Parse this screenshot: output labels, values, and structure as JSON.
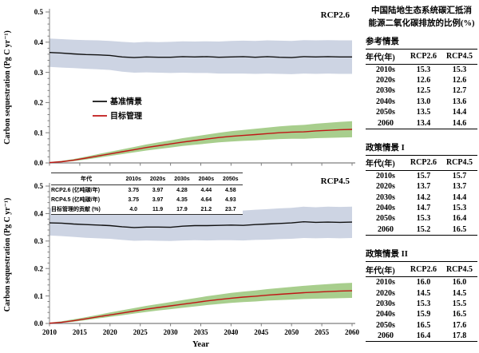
{
  "axes": {
    "ylabel": "Carbon sequestration (Pg C yr⁻¹)",
    "xlabel": "Year"
  },
  "chart_data": [
    {
      "type": "line",
      "title": "RCP2.6",
      "xlabel": "Year",
      "ylabel": "Carbon sequestration (Pg C yr⁻¹)",
      "xlim": [
        2010,
        2060
      ],
      "ylim": [
        0,
        0.5
      ],
      "xticks": [
        2010,
        2015,
        2020,
        2025,
        2030,
        2035,
        2040,
        2045,
        2050,
        2055,
        2060
      ],
      "yticks": [
        0.0,
        0.1,
        0.2,
        0.3,
        0.4,
        0.5
      ],
      "ytick_minor_step": 0.02,
      "legend_position": "center-left",
      "x": [
        2010,
        2012,
        2014,
        2016,
        2018,
        2020,
        2022,
        2024,
        2026,
        2028,
        2030,
        2032,
        2034,
        2036,
        2038,
        2040,
        2042,
        2044,
        2046,
        2048,
        2050,
        2052,
        2054,
        2056,
        2058,
        2060
      ],
      "series": [
        {
          "id": "baseline",
          "name": "基准情景",
          "color": "#111111",
          "band_color": "#cdd4e3",
          "values": [
            0.366,
            0.364,
            0.361,
            0.359,
            0.358,
            0.356,
            0.351,
            0.349,
            0.351,
            0.35,
            0.35,
            0.352,
            0.351,
            0.352,
            0.35,
            0.351,
            0.352,
            0.35,
            0.352,
            0.35,
            0.349,
            0.352,
            0.351,
            0.352,
            0.351,
            0.351
          ],
          "band_upper": [
            0.412,
            0.41,
            0.408,
            0.407,
            0.406,
            0.404,
            0.401,
            0.399,
            0.401,
            0.4,
            0.401,
            0.403,
            0.402,
            0.403,
            0.402,
            0.404,
            0.405,
            0.404,
            0.406,
            0.405,
            0.404,
            0.407,
            0.406,
            0.407,
            0.406,
            0.406
          ],
          "band_lower": [
            0.318,
            0.316,
            0.314,
            0.312,
            0.31,
            0.308,
            0.302,
            0.299,
            0.3,
            0.299,
            0.298,
            0.299,
            0.298,
            0.298,
            0.296,
            0.296,
            0.296,
            0.295,
            0.296,
            0.295,
            0.294,
            0.296,
            0.295,
            0.296,
            0.295,
            0.295
          ]
        },
        {
          "id": "target",
          "name": "目标管理",
          "color": "#c01616",
          "band_color": "#a8ce8d",
          "values": [
            0.001,
            0.004,
            0.009,
            0.016,
            0.023,
            0.03,
            0.037,
            0.044,
            0.051,
            0.057,
            0.063,
            0.069,
            0.074,
            0.079,
            0.084,
            0.088,
            0.091,
            0.094,
            0.097,
            0.1,
            0.102,
            0.103,
            0.106,
            0.108,
            0.11,
            0.111
          ],
          "band_upper": [
            0.003,
            0.007,
            0.013,
            0.021,
            0.029,
            0.037,
            0.045,
            0.053,
            0.061,
            0.068,
            0.075,
            0.082,
            0.088,
            0.094,
            0.1,
            0.105,
            0.109,
            0.113,
            0.117,
            0.121,
            0.124,
            0.126,
            0.13,
            0.133,
            0.136,
            0.138
          ],
          "band_lower": [
            0.0,
            0.002,
            0.006,
            0.011,
            0.017,
            0.023,
            0.029,
            0.035,
            0.041,
            0.046,
            0.051,
            0.056,
            0.06,
            0.064,
            0.068,
            0.071,
            0.073,
            0.075,
            0.077,
            0.079,
            0.08,
            0.08,
            0.082,
            0.083,
            0.084,
            0.085
          ]
        }
      ]
    },
    {
      "type": "line",
      "title": "RCP4.5",
      "xlabel": "Year",
      "ylabel": "Carbon sequestration (Pg C yr⁻¹)",
      "xlim": [
        2010,
        2060
      ],
      "ylim": [
        0,
        0.5
      ],
      "xticks": [
        2010,
        2015,
        2020,
        2025,
        2030,
        2035,
        2040,
        2045,
        2050,
        2055,
        2060
      ],
      "yticks": [
        0.0,
        0.1,
        0.2,
        0.3,
        0.4,
        0.5
      ],
      "ytick_minor_step": 0.02,
      "x": [
        2010,
        2012,
        2014,
        2016,
        2018,
        2020,
        2022,
        2024,
        2026,
        2028,
        2030,
        2032,
        2034,
        2036,
        2038,
        2040,
        2042,
        2044,
        2046,
        2048,
        2050,
        2052,
        2054,
        2056,
        2058,
        2060
      ],
      "series": [
        {
          "id": "baseline",
          "name": "基准情景",
          "color": "#111111",
          "band_color": "#cdd4e3",
          "values": [
            0.366,
            0.365,
            0.362,
            0.36,
            0.358,
            0.356,
            0.352,
            0.349,
            0.351,
            0.351,
            0.35,
            0.354,
            0.356,
            0.356,
            0.357,
            0.358,
            0.357,
            0.36,
            0.362,
            0.364,
            0.366,
            0.37,
            0.368,
            0.369,
            0.368,
            0.369
          ],
          "band_upper": [
            0.42,
            0.419,
            0.416,
            0.413,
            0.411,
            0.409,
            0.405,
            0.402,
            0.404,
            0.404,
            0.403,
            0.407,
            0.409,
            0.409,
            0.411,
            0.412,
            0.411,
            0.414,
            0.416,
            0.419,
            0.421,
            0.425,
            0.423,
            0.425,
            0.424,
            0.425
          ],
          "band_lower": [
            0.32,
            0.318,
            0.315,
            0.312,
            0.31,
            0.308,
            0.304,
            0.301,
            0.302,
            0.301,
            0.3,
            0.302,
            0.303,
            0.302,
            0.303,
            0.303,
            0.302,
            0.304,
            0.305,
            0.307,
            0.308,
            0.311,
            0.31,
            0.311,
            0.31,
            0.311
          ]
        },
        {
          "id": "target",
          "name": "目标管理",
          "color": "#c01616",
          "band_color": "#a8ce8d",
          "values": [
            0.001,
            0.004,
            0.01,
            0.017,
            0.024,
            0.031,
            0.038,
            0.045,
            0.052,
            0.058,
            0.064,
            0.07,
            0.076,
            0.082,
            0.087,
            0.092,
            0.096,
            0.099,
            0.103,
            0.106,
            0.109,
            0.112,
            0.114,
            0.116,
            0.118,
            0.119
          ],
          "band_upper": [
            0.003,
            0.008,
            0.015,
            0.023,
            0.031,
            0.04,
            0.048,
            0.056,
            0.064,
            0.071,
            0.078,
            0.085,
            0.092,
            0.099,
            0.105,
            0.111,
            0.116,
            0.12,
            0.125,
            0.129,
            0.133,
            0.137,
            0.14,
            0.143,
            0.146,
            0.148
          ],
          "band_lower": [
            0.0,
            0.002,
            0.006,
            0.012,
            0.018,
            0.024,
            0.03,
            0.036,
            0.042,
            0.047,
            0.052,
            0.057,
            0.062,
            0.067,
            0.071,
            0.075,
            0.078,
            0.08,
            0.083,
            0.085,
            0.087,
            0.089,
            0.09,
            0.091,
            0.092,
            0.093
          ]
        }
      ]
    }
  ],
  "inset_table": {
    "columns": [
      "年代",
      "2010s",
      "2020s",
      "2030s",
      "2040s",
      "2050s"
    ],
    "rows": [
      [
        "RCP2.6 (亿吨碳/年)",
        "3.75",
        "3.97",
        "4.28",
        "4.44",
        "4.58"
      ],
      [
        "RCP4.5 (亿吨碳/年)",
        "3.75",
        "3.97",
        "4.35",
        "4.64",
        "4.93"
      ],
      [
        "目标管理的贡献 (%)",
        "4.0",
        "11.9",
        "17.9",
        "21.2",
        "23.7"
      ]
    ]
  },
  "right_panel": {
    "title_line1": "中国陆地生态系统碳汇抵消",
    "title_line2": "能源二氧化碳排放的比例(%)",
    "sections": [
      {
        "heading": "参考情景",
        "columns": [
          "年代(年)",
          "RCP2.6",
          "RCP4.5"
        ],
        "rows": [
          [
            "2010s",
            "15.3",
            "15.3"
          ],
          [
            "2020s",
            "12.6",
            "12.6"
          ],
          [
            "2030s",
            "12.5",
            "12.7"
          ],
          [
            "2040s",
            "13.0",
            "13.6"
          ],
          [
            "2050s",
            "13.5",
            "14.4"
          ],
          [
            "2060",
            "13.4",
            "14.6"
          ]
        ]
      },
      {
        "heading": "政策情景 I",
        "columns": [
          "年代(年)",
          "RCP2.6",
          "RCP4.5"
        ],
        "rows": [
          [
            "2010s",
            "15.7",
            "15.7"
          ],
          [
            "2020s",
            "13.7",
            "13.7"
          ],
          [
            "2030s",
            "14.2",
            "14.4"
          ],
          [
            "2040s",
            "14.7",
            "15.3"
          ],
          [
            "2050s",
            "15.3",
            "16.4"
          ],
          [
            "2060",
            "15.2",
            "16.5"
          ]
        ]
      },
      {
        "heading": "政策情景 II",
        "columns": [
          "年代(年)",
          "RCP2.6",
          "RCP4.5"
        ],
        "rows": [
          [
            "2010s",
            "16.0",
            "16.0"
          ],
          [
            "2020s",
            "14.5",
            "14.5"
          ],
          [
            "2030s",
            "15.3",
            "15.5"
          ],
          [
            "2040s",
            "15.9",
            "16.5"
          ],
          [
            "2050s",
            "16.5",
            "17.6"
          ],
          [
            "2060",
            "16.4",
            "17.8"
          ]
        ]
      }
    ]
  },
  "colors": {
    "baseline_line": "#111111",
    "baseline_band": "#cdd4e3",
    "target_line": "#c01616",
    "target_band": "#a8ce8d",
    "axis": "#7f7f7f"
  }
}
